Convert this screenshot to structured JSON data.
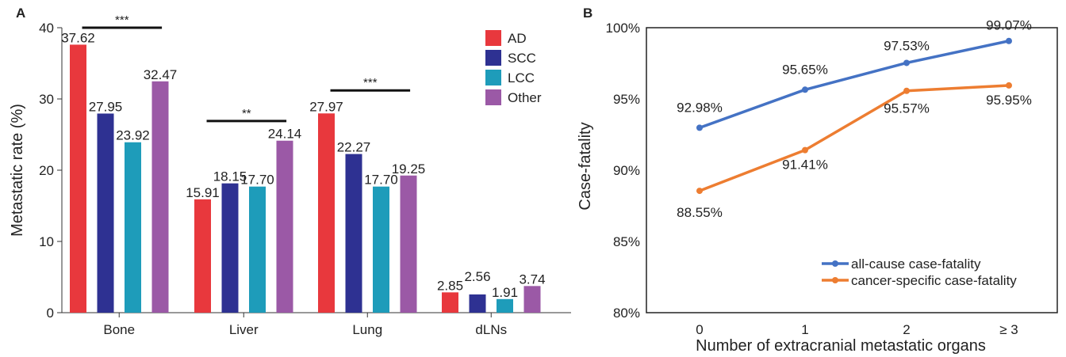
{
  "panel_a": {
    "letter": "A",
    "chart_data": {
      "type": "bar",
      "categories": [
        "Bone",
        "Liver",
        "Lung",
        "dLNs"
      ],
      "series": [
        {
          "name": "AD",
          "color": "#e8383d",
          "values": [
            37.62,
            15.91,
            27.97,
            2.85
          ],
          "labels": [
            "37.62",
            "15.91",
            "27.97",
            "2.85"
          ]
        },
        {
          "name": "SCC",
          "color": "#2e3192",
          "values": [
            27.95,
            18.15,
            22.27,
            2.56
          ],
          "labels": [
            "27.95",
            "18.15",
            "22.27",
            "2.56"
          ]
        },
        {
          "name": "LCC",
          "color": "#1e9cba",
          "values": [
            23.92,
            17.7,
            17.7,
            1.91
          ],
          "labels": [
            "23.92",
            "17.70",
            "17.70",
            "1.91"
          ]
        },
        {
          "name": "Other",
          "color": "#9b59a6",
          "values": [
            32.47,
            24.14,
            19.25,
            3.74
          ],
          "labels": [
            "32.47",
            "24.14",
            "19.25",
            "3.74"
          ]
        }
      ],
      "ylabel": "Metastatic rate (%)",
      "ylim": [
        0,
        40
      ],
      "yticks": [
        0,
        10,
        20,
        30,
        40
      ],
      "legend_position": "top-right",
      "grid": false,
      "significance": [
        {
          "category": "Bone",
          "label": "***",
          "level": 40
        },
        {
          "category": "Liver",
          "label": "**",
          "level": 26.9
        },
        {
          "category": "Lung",
          "label": "***",
          "level": 31.2
        }
      ]
    }
  },
  "panel_b": {
    "letter": "B",
    "chart_data": {
      "type": "line",
      "categories": [
        "0",
        "1",
        "2",
        "≥ 3"
      ],
      "series": [
        {
          "name": "all-cause case-fatality",
          "color": "#4472c4",
          "values": [
            92.98,
            95.65,
            97.53,
            99.07
          ],
          "labels": [
            "92.98%",
            "95.65%",
            "97.53%",
            "99.07%"
          ]
        },
        {
          "name": "cancer-specific case-fatality",
          "color": "#ed7d31",
          "values": [
            88.55,
            91.41,
            95.57,
            95.95
          ],
          "labels": [
            "88.55%",
            "91.41%",
            "95.57%",
            "95.95%"
          ]
        }
      ],
      "xlabel": "Number of extracranial metastatic organs",
      "ylabel": "Case-fatality",
      "ylim": [
        80,
        100
      ],
      "yticks": [
        "80%",
        "85%",
        "90%",
        "95%",
        "100%"
      ],
      "legend_position": "bottom-right",
      "grid": false
    }
  }
}
